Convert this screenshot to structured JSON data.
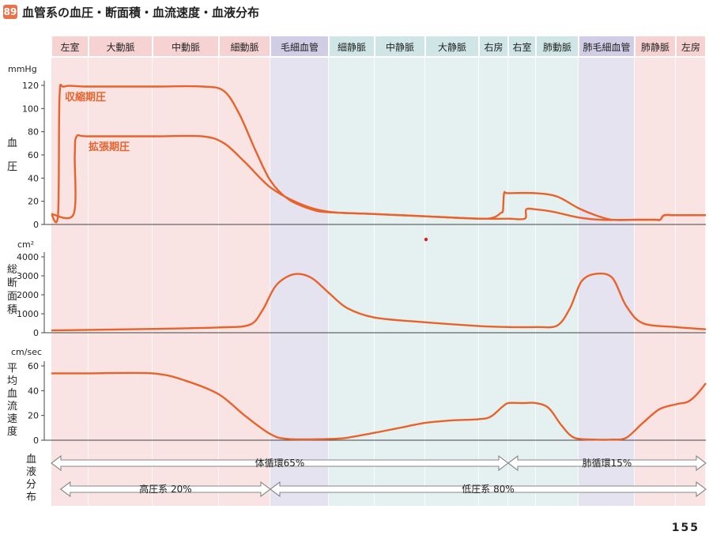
{
  "figure": {
    "number": "89",
    "title": "血管系の血圧・断面積・血流速度・血液分布",
    "page": "155"
  },
  "segments": [
    {
      "label": "左室",
      "group": "high"
    },
    {
      "label": "大動脈",
      "group": "high"
    },
    {
      "label": "中動脈",
      "group": "high"
    },
    {
      "label": "細動脈",
      "group": "high"
    },
    {
      "label": "毛細血管",
      "group": "cap"
    },
    {
      "label": "細静脈",
      "group": "low"
    },
    {
      "label": "中静脈",
      "group": "low"
    },
    {
      "label": "大静脈",
      "group": "low"
    },
    {
      "label": "右房",
      "group": "low"
    },
    {
      "label": "右室",
      "group": "low"
    },
    {
      "label": "肺動脈",
      "group": "low"
    },
    {
      "label": "肺毛細血管",
      "group": "cap"
    },
    {
      "label": "肺静脈",
      "group": "high"
    },
    {
      "label": "左房",
      "group": "high"
    }
  ],
  "colors": {
    "curve": "#e8632c",
    "high": "#f9e3e3",
    "high_header": "#f6d2d3",
    "cap": "#e6e3f0",
    "cap_header": "#d2cde6",
    "low": "#e5f1f1",
    "low_header": "#d0e6e6",
    "annotation": "#e8632c"
  },
  "chart_data": [
    {
      "type": "line",
      "name": "blood-pressure",
      "axis_title": "血圧",
      "unit": "mmHg",
      "ylim": [
        0,
        120
      ],
      "yticks": [
        0,
        20,
        40,
        60,
        80,
        100,
        120
      ],
      "x_unit": "segment position (0-14)",
      "series": [
        {
          "name": "収縮期圧",
          "points": [
            [
              0,
              9
            ],
            [
              0.18,
              9
            ],
            [
              0.22,
              110
            ],
            [
              0.35,
              119
            ],
            [
              1,
              119
            ],
            [
              2,
              119
            ],
            [
              2.75,
              119
            ],
            [
              3.1,
              115
            ],
            [
              3.4,
              95
            ],
            [
              3.7,
              65
            ],
            [
              4.0,
              38
            ],
            [
              4.3,
              22
            ],
            [
              4.7,
              13
            ],
            [
              5,
              10.5
            ],
            [
              6,
              9
            ],
            [
              7,
              7
            ],
            [
              8,
              5
            ],
            [
              8.5,
              6
            ],
            [
              8.75,
              10
            ],
            [
              8.82,
              12
            ],
            [
              8.86,
              27
            ],
            [
              9,
              27
            ],
            [
              10,
              27
            ],
            [
              10.5,
              24
            ],
            [
              11,
              14
            ],
            [
              11.3,
              8
            ],
            [
              11.6,
              4
            ],
            [
              12,
              4
            ],
            [
              12.5,
              4
            ],
            [
              12.62,
              4
            ],
            [
              12.72,
              8
            ],
            [
              13,
              8
            ],
            [
              14,
              8
            ]
          ]
        },
        {
          "name": "拡張期圧",
          "points": [
            [
              0,
              9
            ],
            [
              0.6,
              9
            ],
            [
              0.63,
              60
            ],
            [
              0.68,
              76
            ],
            [
              1,
              76
            ],
            [
              2,
              76
            ],
            [
              2.75,
              76
            ],
            [
              3.1,
              70
            ],
            [
              3.5,
              54
            ],
            [
              4.0,
              32
            ],
            [
              4.5,
              18
            ],
            [
              5,
              11
            ],
            [
              6,
              9
            ],
            [
              7,
              7
            ],
            [
              8,
              5
            ],
            [
              9,
              5
            ],
            [
              9.6,
              5
            ],
            [
              9.65,
              13
            ],
            [
              10,
              13
            ],
            [
              10.4,
              11
            ],
            [
              11,
              6
            ],
            [
              11.4,
              4
            ],
            [
              12,
              4
            ],
            [
              12.5,
              4
            ],
            [
              12.62,
              4
            ],
            [
              12.72,
              8
            ],
            [
              13,
              8
            ],
            [
              14,
              8
            ]
          ]
        }
      ]
    },
    {
      "type": "line",
      "name": "total-cross-section",
      "axis_title": "総断面積",
      "unit": "cm²",
      "ylim": [
        0,
        4000
      ],
      "yticks": [
        0,
        1000,
        2000,
        3000,
        4000
      ],
      "series": [
        {
          "points": [
            [
              0,
              120
            ],
            [
              1,
              150
            ],
            [
              2,
              200
            ],
            [
              3,
              280
            ],
            [
              3.6,
              420
            ],
            [
              3.85,
              1200
            ],
            [
              4.1,
              2500
            ],
            [
              4.4,
              3080
            ],
            [
              4.7,
              2900
            ],
            [
              5,
              2100
            ],
            [
              5.4,
              1300
            ],
            [
              6,
              800
            ],
            [
              7,
              550
            ],
            [
              8,
              350
            ],
            [
              9,
              300
            ],
            [
              10,
              300
            ],
            [
              10.5,
              380
            ],
            [
              10.8,
              1300
            ],
            [
              11.05,
              2700
            ],
            [
              11.3,
              3100
            ],
            [
              11.6,
              2900
            ],
            [
              11.85,
              1400
            ],
            [
              12.2,
              500
            ],
            [
              13,
              300
            ],
            [
              14,
              180
            ]
          ]
        }
      ]
    },
    {
      "type": "line",
      "name": "mean-flow-velocity",
      "axis_title": "平均血流速度",
      "unit": "cm/sec",
      "ylim": [
        0,
        60
      ],
      "yticks": [
        0,
        20,
        40,
        60
      ],
      "series": [
        {
          "points": [
            [
              0,
              54
            ],
            [
              1,
              54
            ],
            [
              2,
              54
            ],
            [
              2.5,
              48
            ],
            [
              3,
              37
            ],
            [
              3.5,
              20
            ],
            [
              4,
              5
            ],
            [
              4.3,
              1
            ],
            [
              5,
              1
            ],
            [
              5.4,
              2
            ],
            [
              6,
              6
            ],
            [
              6.5,
              10
            ],
            [
              7,
              14
            ],
            [
              7.5,
              16
            ],
            [
              8,
              17
            ],
            [
              8.4,
              19
            ],
            [
              8.8,
              27
            ],
            [
              9,
              30
            ],
            [
              9.5,
              30
            ],
            [
              10,
              30
            ],
            [
              10.3,
              26
            ],
            [
              10.6,
              12
            ],
            [
              10.9,
              2
            ],
            [
              11.3,
              0.5
            ],
            [
              11.6,
              0.5
            ],
            [
              11.85,
              2
            ],
            [
              12.2,
              14
            ],
            [
              12.6,
              25
            ],
            [
              13,
              29
            ],
            [
              13.4,
              31
            ],
            [
              13.7,
              37
            ],
            [
              14,
              46
            ]
          ]
        }
      ]
    }
  ],
  "annotations": {
    "systolic": "収縮期圧",
    "diastolic": "拡張期圧"
  },
  "axis_titles": {
    "pressure": [
      "血",
      "圧"
    ],
    "area": [
      "総",
      "断",
      "面",
      "積"
    ],
    "velocity": [
      "平",
      "均",
      "血",
      "流",
      "速",
      "度"
    ],
    "distribution": [
      "血",
      "液",
      "分",
      "布"
    ]
  },
  "distribution": {
    "systemic": {
      "label": "体循環65%",
      "from": 0,
      "to": 9
    },
    "pulmonary": {
      "label": "肺循環15%",
      "from": 9,
      "to": 14
    },
    "high_pressure": {
      "label": "高圧系 20%",
      "from": 0.25,
      "to": 4
    },
    "low_pressure": {
      "label": "低圧系 80%",
      "from": 4,
      "to": 14
    }
  }
}
